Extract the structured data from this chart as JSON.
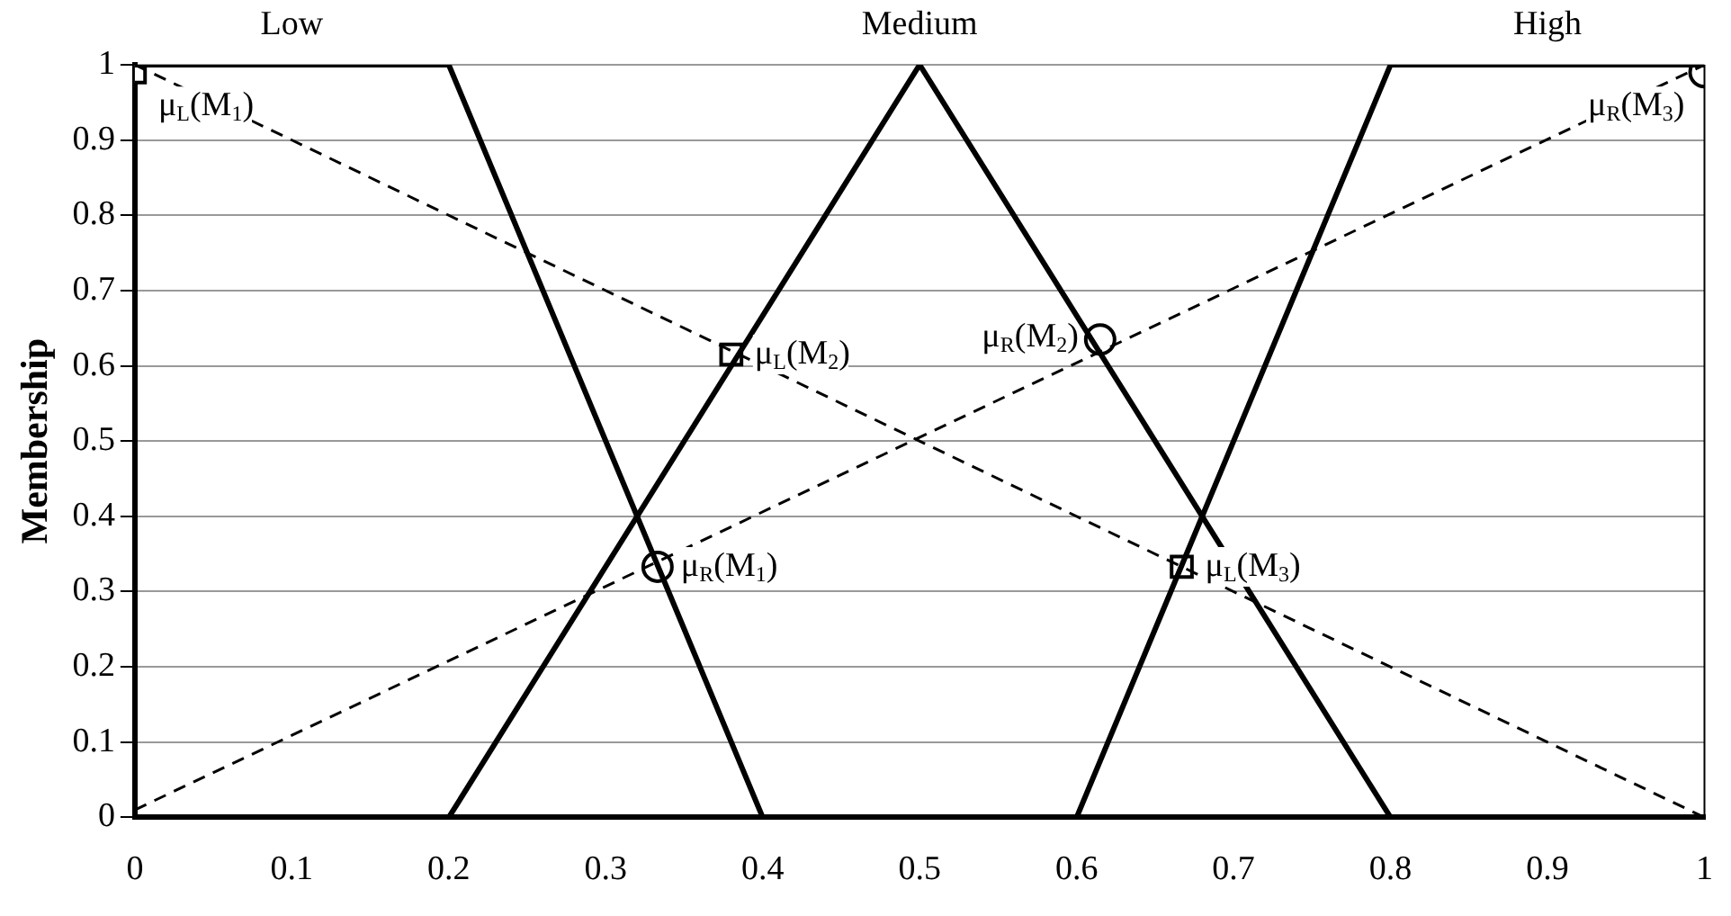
{
  "chart_data": {
    "type": "line",
    "ylabel": "Membership",
    "xlim": [
      0,
      1
    ],
    "ylim": [
      0,
      1
    ],
    "xticks": [
      0,
      0.1,
      0.2,
      0.3,
      0.4,
      0.5,
      0.6,
      0.7,
      0.8,
      0.9,
      1
    ],
    "yticks": [
      0,
      0.1,
      0.2,
      0.3,
      0.4,
      0.5,
      0.6,
      0.7,
      0.8,
      0.9,
      1
    ],
    "grid": "y",
    "legend": false,
    "series": [
      {
        "name": "Low",
        "color": "#000000",
        "line_style": "solid",
        "marker": "none",
        "x": [
          0,
          0.2,
          0.4
        ],
        "values": [
          1,
          1,
          0
        ]
      },
      {
        "name": "Medium",
        "color": "#000000",
        "line_style": "solid",
        "marker": "none",
        "x": [
          0.2,
          0.5,
          0.8
        ],
        "values": [
          0,
          1,
          0
        ]
      },
      {
        "name": "High",
        "color": "#000000",
        "line_style": "solid",
        "marker": "none",
        "x": [
          0.6,
          0.8,
          1
        ],
        "values": [
          0,
          1,
          1
        ]
      },
      {
        "color": "#000000",
        "line_style": "dashed",
        "marker": "none",
        "x": [
          0,
          1
        ],
        "values": [
          1,
          0
        ]
      },
      {
        "color": "#000000",
        "line_style": "dashed",
        "marker": "none",
        "x": [
          0,
          1
        ],
        "values": [
          0.01,
          1
        ]
      },
      {
        "type": "scatter",
        "color": "#000000",
        "marker": "square",
        "x": [
          0,
          0.38,
          0.667
        ],
        "values": [
          0.99,
          0.615,
          0.333
        ]
      },
      {
        "type": "scatter",
        "color": "#000000",
        "marker": "circle",
        "x": [
          0.333,
          0.615,
          1
        ],
        "values": [
          0.333,
          0.635,
          0.99
        ]
      }
    ],
    "annotations": [
      {
        "text": "μ$_{L}$(M$_{1}$)",
        "x": 0,
        "y": 0.99
      },
      {
        "text": "μ$_{L}$(M$_{2}$)",
        "x": 0.38,
        "y": 0.615
      },
      {
        "text": "μ$_{R}$(M$_{1}$)",
        "x": 0.333,
        "y": 0.333
      },
      {
        "text": "μ$_{R}$(M$_{2}$)",
        "x": 0.615,
        "y": 0.635
      },
      {
        "text": "μ$_{L}$(M$_{3}$)",
        "x": 0.667,
        "y": 0.333
      },
      {
        "text": "μ$_{R}$(M$_{3}$)",
        "x": 1,
        "y": 0.99
      }
    ]
  }
}
